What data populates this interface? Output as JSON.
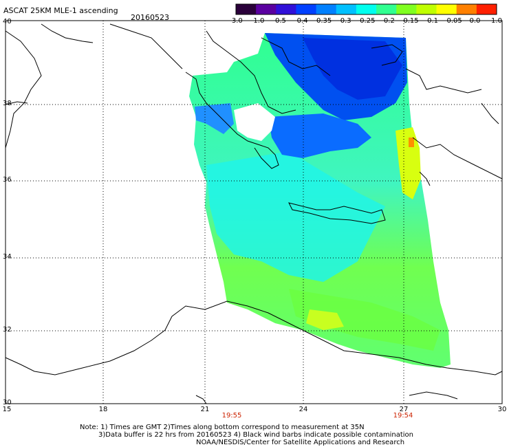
{
  "header": {
    "title": "ASCAT 25KM MLE-1 ascending",
    "date": "20160523"
  },
  "colorbar": {
    "labels": [
      "-3.0",
      "-1.0",
      "-0.5",
      "-0.4",
      "-0.35",
      "-0.3",
      "-0.25",
      "-0.2",
      "-0.15",
      "-0.1",
      "-0.05",
      "0.0",
      "1.0"
    ],
    "colors": [
      "#2a003a",
      "#5a00a0",
      "#3010d8",
      "#0040ff",
      "#0080ff",
      "#00c0ff",
      "#00ffee",
      "#30ff90",
      "#80ff20",
      "#c0ff00",
      "#ffff00",
      "#ff8000",
      "#ff2000"
    ]
  },
  "axes": {
    "lat_labels": [
      "40",
      "38",
      "36",
      "34",
      "32",
      "30"
    ],
    "lon_labels": [
      "15",
      "18",
      "21",
      "24",
      "27",
      "30"
    ],
    "times": [
      "19:55",
      "19:54"
    ]
  },
  "notes": {
    "line1": "Note: 1) Times are GMT 2)Times along bottom correspond to measurement at 35N",
    "line2": "3)Data buffer is 22 hrs from 20160523 4) Black wind barbs indicate possible contamination",
    "line3": "NOAA/NESDIS/Center for Satellite Applications and Research"
  }
}
